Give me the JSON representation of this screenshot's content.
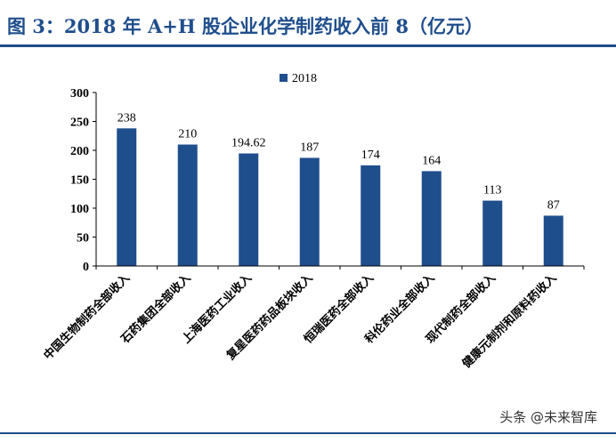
{
  "title": "图 3：2018 年 A+H 股企业化学制药收入前 8（亿元）",
  "watermark": "头条 @未来智库",
  "chart_data": {
    "type": "bar",
    "title": "图 3：2018 年 A+H 股企业化学制药收入前 8（亿元）",
    "xlabel": "",
    "ylabel": "",
    "ylim": [
      0,
      300
    ],
    "yticks": [
      0,
      50,
      100,
      150,
      200,
      250,
      300
    ],
    "grid": false,
    "legend": "top-center",
    "categories": [
      "中国生物制药全部收入",
      "石药集团全部收入",
      "上海医药工业收入",
      "复星医药药品板块收入",
      "恒瑞医药全部收入",
      "科伦药业全部收入",
      "现代制药全部收入",
      "健康元制剂和原料药收入"
    ],
    "series": [
      {
        "name": "2018",
        "color": "#1f4e8c",
        "values": [
          238,
          210,
          194.62,
          187,
          174,
          164,
          113,
          87
        ],
        "labels": [
          "238",
          "210",
          "194.62",
          "187",
          "174",
          "164",
          "113",
          "87"
        ]
      }
    ]
  }
}
